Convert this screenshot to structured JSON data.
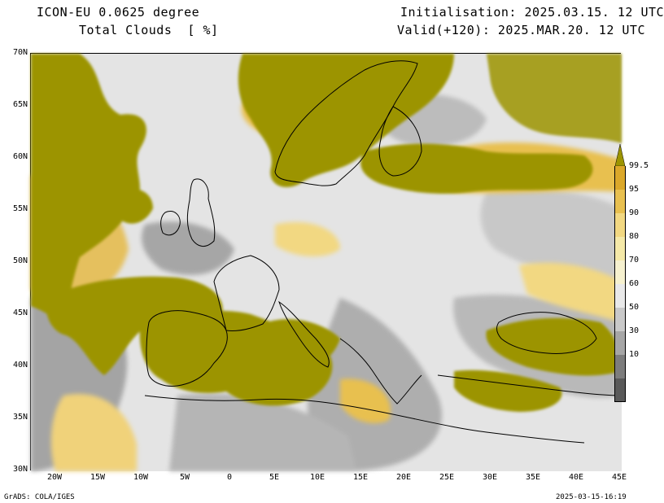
{
  "header": {
    "model": "ICON-EU 0.0625 degree",
    "variable": "Total Clouds  [ %]",
    "init": "Initialisation: 2025.03.15. 12 UTC",
    "valid": "Valid(+120): 2025.MAR.20. 12 UTC"
  },
  "footer": {
    "credit": "GrADS: COLA/IGES",
    "timestamp": "2025-03-15-16:19"
  },
  "lat_labels": [
    "70N",
    "65N",
    "60N",
    "55N",
    "50N",
    "45N",
    "40N",
    "35N",
    "30N"
  ],
  "lon_labels": [
    "20W",
    "15W",
    "10W",
    "5W",
    "0",
    "5E",
    "10E",
    "15E",
    "20E",
    "25E",
    "30E",
    "35E",
    "40E",
    "45E"
  ],
  "colorbar": {
    "levels": [
      "99.5",
      "95",
      "90",
      "80",
      "70",
      "60",
      "50",
      "30",
      "10"
    ],
    "colors": [
      "#dba82a",
      "#e8c050",
      "#f2d882",
      "#f5e9a8",
      "#f6f1cf",
      "#e9e9e9",
      "#c9c9c9",
      "#a6a6a6",
      "#7d7d7d",
      "#595959"
    ],
    "overcast_color": "#9c9400"
  }
}
